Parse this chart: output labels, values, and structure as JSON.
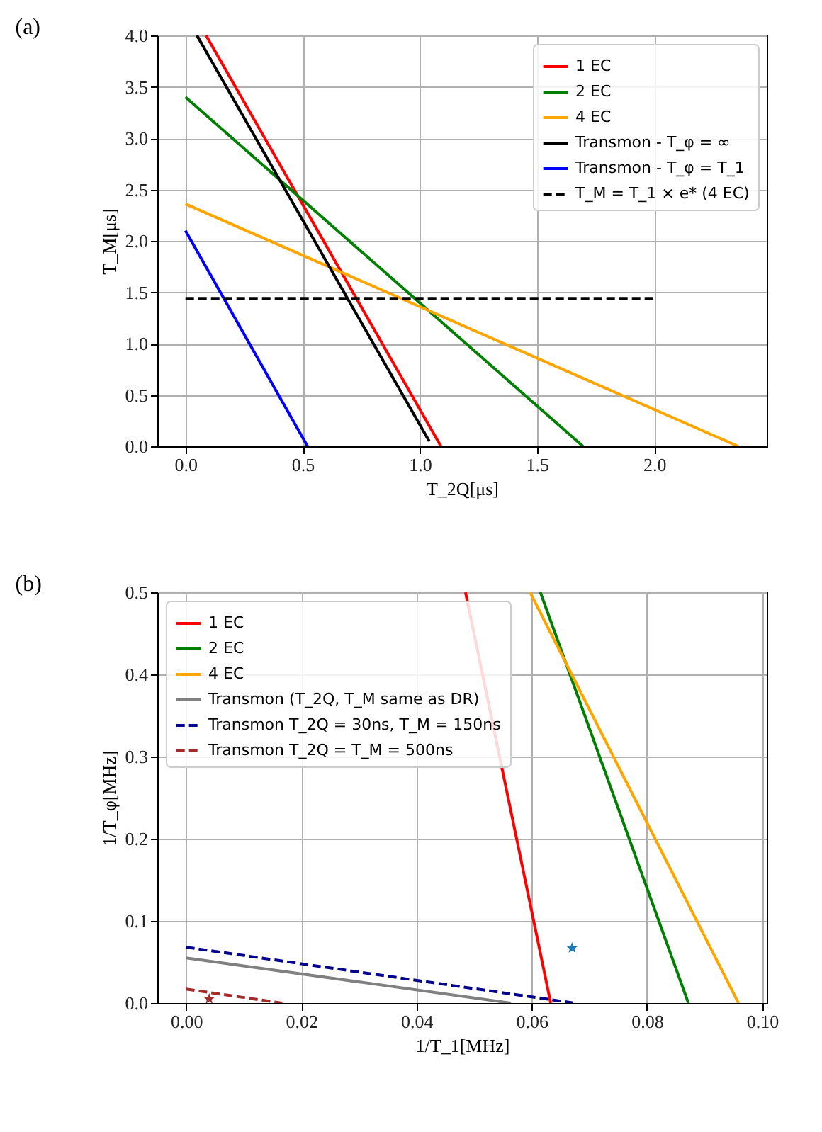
{
  "chart_data": [
    {
      "type": "line",
      "title": "(a)",
      "xlabel": "T_2Q[μs]",
      "ylabel": "T_M[μs]",
      "xlim": [
        -0.12,
        2.48
      ],
      "ylim": [
        0,
        4
      ],
      "xticks": [
        {
          "value": 0,
          "label": "0.0"
        },
        0.5,
        {
          "value": 1,
          "label": "1.0"
        },
        1.5,
        {
          "value": 2,
          "label": "2.0"
        }
      ],
      "yticks": [
        {
          "value": 0,
          "label": "0.0"
        },
        0.5,
        {
          "value": 1,
          "label": "1.0"
        },
        1.5,
        {
          "value": 2,
          "label": "2.0"
        },
        2.5,
        {
          "value": 3,
          "label": "3.0"
        },
        3.5,
        {
          "value": 4,
          "label": "4.0"
        }
      ],
      "grid": true,
      "legend": "top right",
      "series": [
        {
          "name": "1 EC",
          "color": "#ff0000",
          "x": [
            0.088,
            1.09
          ],
          "values": [
            4.0,
            0.0
          ],
          "line_style": "solid"
        },
        {
          "name": "2 EC",
          "color": "#008000",
          "x": [
            0,
            1.696
          ],
          "values": [
            3.4,
            0.0
          ],
          "line_style": "solid"
        },
        {
          "name": "4 EC",
          "color": "#ffa500",
          "x": [
            0,
            2.358
          ],
          "values": [
            2.36,
            0.0
          ],
          "line_style": "solid"
        },
        {
          "name": "Transmon - T_φ = ∞",
          "color": "#000000",
          "x": [
            0.049,
            1.04
          ],
          "values": [
            4.0,
            0.05
          ],
          "line_style": "solid"
        },
        {
          "name": "Transmon - T_φ = T_1",
          "color": "#0000ff",
          "x": [
            0,
            0.521
          ],
          "values": [
            2.1,
            0.0
          ],
          "line_style": "solid"
        },
        {
          "name": "T_M = T_1 × e* (4 EC)",
          "color": "#000000",
          "x": [
            0,
            2.0
          ],
          "values": [
            1.44,
            1.44
          ],
          "line_style": "dashed"
        }
      ]
    },
    {
      "type": "line",
      "title": "(b)",
      "xlabel": "1/T_1[MHz]",
      "ylabel": "1/T_φ[MHz]",
      "xlim": [
        -0.005,
        0.1008
      ],
      "ylim": [
        0,
        0.5
      ],
      "xticks": [
        {
          "value": 0,
          "label": "0.00"
        },
        0.02,
        0.04,
        0.06,
        0.08,
        {
          "value": 0.1,
          "label": "0.10"
        }
      ],
      "yticks": [
        {
          "value": 0,
          "label": "0.0"
        },
        0.1,
        0.2,
        0.3,
        0.4,
        0.5
      ],
      "grid": true,
      "legend": "top left",
      "series": [
        {
          "name": "1 EC",
          "color": "#ff0000",
          "x": [
            0.0485,
            0.0633
          ],
          "values": [
            0.5,
            0.0
          ],
          "line_style": "solid"
        },
        {
          "name": "2 EC",
          "color": "#008000",
          "x": [
            0.0615,
            0.0872
          ],
          "values": [
            0.5,
            0.0
          ],
          "line_style": "solid"
        },
        {
          "name": "4 EC",
          "color": "#ffa500",
          "x": [
            0.0597,
            0.0959
          ],
          "values": [
            0.5,
            0.0
          ],
          "line_style": "solid"
        },
        {
          "name": "Transmon (T_2Q, T_M same as DR)",
          "color": "#808080",
          "x": [
            0,
            0.0564
          ],
          "values": [
            0.055,
            0.0
          ],
          "line_style": "solid"
        },
        {
          "name": "Transmon T_2Q = 30ns, T_M = 150ns",
          "color": "#00008b",
          "x": [
            0,
            0.0675
          ],
          "values": [
            0.068,
            0.0
          ],
          "line_style": "dashed"
        },
        {
          "type": "scatter",
          "marker": "star",
          "color": "#1f77b4",
          "x": [
            0.067
          ],
          "values": [
            0.067
          ]
        },
        {
          "name": "Transmon T_2Q = T_M = 500ns",
          "color": "#a52a2a",
          "x": [
            0,
            0.0167
          ],
          "values": [
            0.017,
            0.0
          ],
          "line_style": "dashed"
        },
        {
          "type": "scatter",
          "marker": "star",
          "color": "#a52a2a",
          "x": [
            0.004
          ],
          "values": [
            0.005
          ]
        }
      ]
    }
  ]
}
